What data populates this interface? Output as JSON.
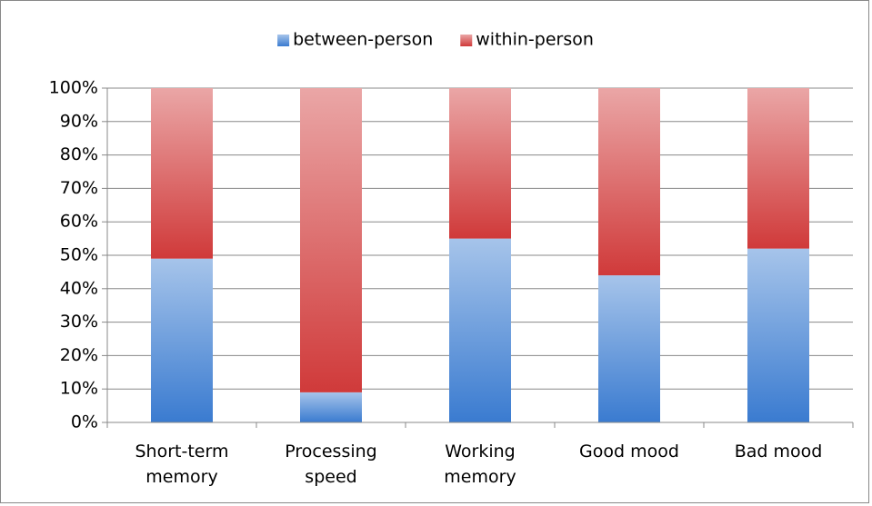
{
  "chart_data": {
    "type": "stacked_bar",
    "categories": [
      "Short-term memory",
      "Processing speed",
      "Working memory",
      "Good mood",
      "Bad mood"
    ],
    "series": [
      {
        "name": "between-person",
        "color": "#3a7bd0",
        "values": [
          49,
          9,
          55,
          44,
          52
        ]
      },
      {
        "name": "within-person",
        "color": "#d03a3a",
        "values": [
          51,
          91,
          45,
          56,
          48
        ]
      }
    ],
    "ylim": [
      0,
      100
    ],
    "yticks": [
      {
        "value": 0,
        "label": "0%"
      },
      {
        "value": 10,
        "label": "10%"
      },
      {
        "value": 20,
        "label": "20%"
      },
      {
        "value": 30,
        "label": "30%"
      },
      {
        "value": 40,
        "label": "40%"
      },
      {
        "value": 50,
        "label": "50%"
      },
      {
        "value": 60,
        "label": "60%"
      },
      {
        "value": 70,
        "label": "70%"
      },
      {
        "value": 80,
        "label": "80%"
      },
      {
        "value": 90,
        "label": "90%"
      },
      {
        "value": 100,
        "label": "100%"
      }
    ],
    "grid": true,
    "legend": "top"
  }
}
